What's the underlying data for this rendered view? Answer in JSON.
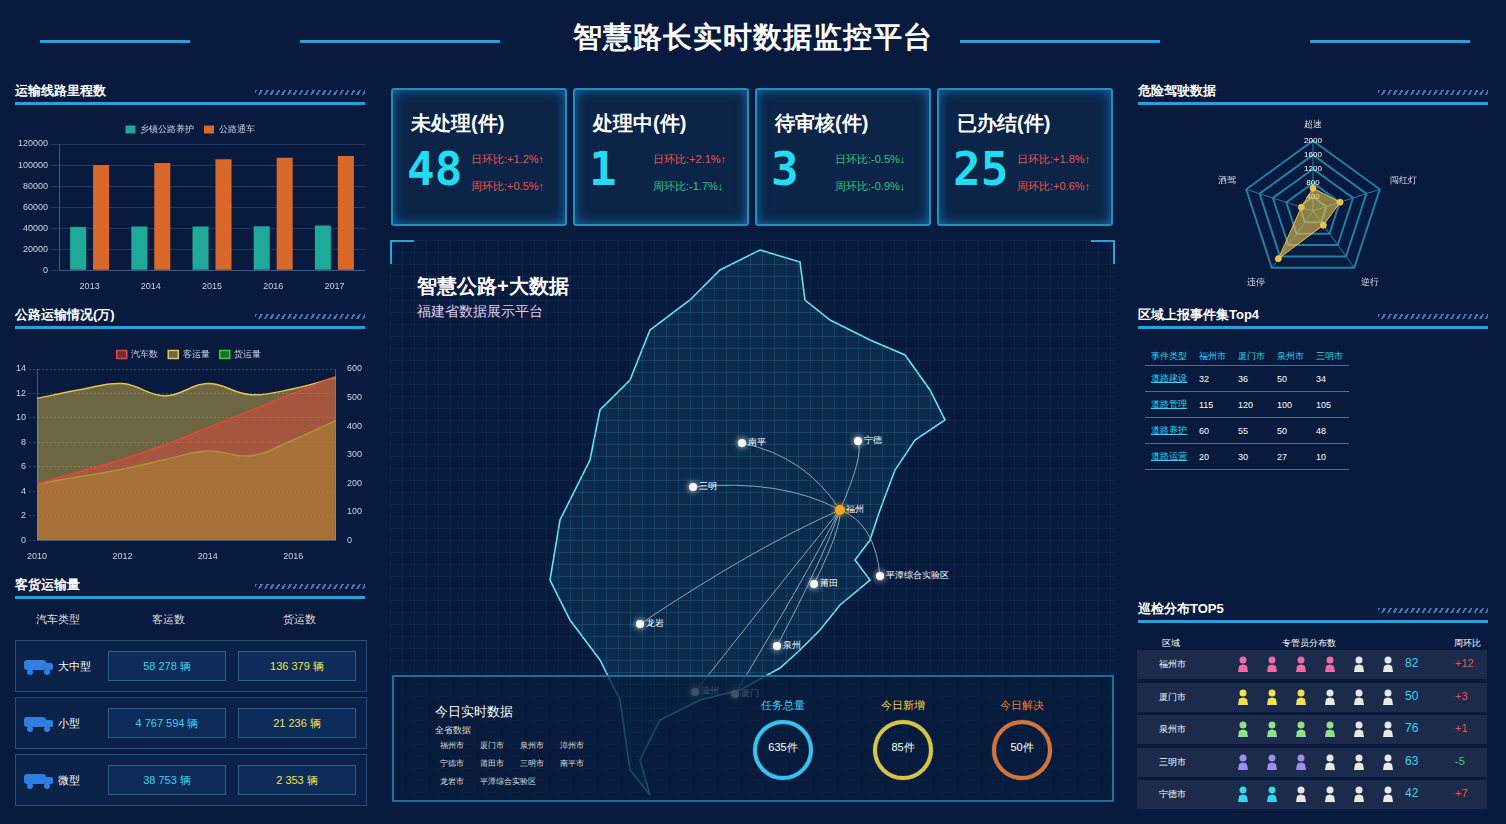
{
  "header": {
    "title": "智慧路长实时数据监控平台"
  },
  "chart_data": [
    {
      "type": "bar",
      "title": "运输线路里程数",
      "categories": [
        "2013",
        "2014",
        "2015",
        "2016",
        "2017"
      ],
      "series": [
        {
          "name": "乡镇公路养护",
          "color": "#1fa99b",
          "values": [
            41000,
            41500,
            41500,
            41800,
            42500
          ]
        },
        {
          "name": "公路通车",
          "color": "#d8692b",
          "values": [
            100000,
            102000,
            105500,
            107000,
            108500
          ]
        }
      ],
      "ylim": [
        0,
        120000
      ],
      "yticks": [
        0,
        20000,
        40000,
        60000,
        80000,
        100000,
        120000
      ],
      "grid": true,
      "legend": "top"
    },
    {
      "type": "line",
      "title": "公路运输情况(万)",
      "categories": [
        "2010",
        null,
        "2012",
        null,
        "2014",
        null,
        "2016",
        null
      ],
      "series": [
        {
          "name": "汽车数",
          "color": "#e8453c",
          "values": [
            4.6,
            5.6,
            6.6,
            7.8,
            9.2,
            10.6,
            12.0,
            13.4
          ]
        },
        {
          "name": "客运量",
          "color": "#e9c34a",
          "axis": "y2",
          "values": [
            497,
            527,
            549,
            506,
            549,
            510,
            531,
            570
          ]
        },
        {
          "name": "货运量",
          "color": "#22e01a",
          "values": [
            4.6,
            5.2,
            5.8,
            6.6,
            7.3,
            6.9,
            8.2,
            9.8
          ]
        }
      ],
      "ylim": [
        0,
        14
      ],
      "yticks": [
        0,
        2,
        4,
        6,
        8,
        10,
        12,
        14
      ],
      "y2lim": [
        0,
        600
      ],
      "y2ticks": [
        0,
        100,
        200,
        300,
        400,
        500,
        600
      ],
      "grid": true,
      "legend": "top"
    },
    {
      "type": "radar",
      "title": "危险驾驶数据",
      "categories": [
        "超速",
        "闯红灯",
        "逆行",
        "违停",
        "酒驾"
      ],
      "values": [
        650,
        810,
        500,
        1680,
        350
      ],
      "color": "#e9c34a",
      "ylim": [
        0,
        2000
      ],
      "yticks": [
        0,
        400,
        800,
        1200,
        1600,
        2000
      ],
      "grid": true
    }
  ],
  "stats": [
    {
      "title": "未处理(件)",
      "value": 48,
      "day": "日环比:+1.2%↑",
      "week": "周环比:+0.5%↑"
    },
    {
      "title": "处理中(件)",
      "value": 1,
      "day": "日环比:+2.1%↑",
      "week": "周环比:-1.7%↓"
    },
    {
      "title": "待审核(件)",
      "value": 3,
      "day": "日环比:-0.5%↓",
      "week": "周环比:-0.9%↓"
    },
    {
      "title": "已办结(件)",
      "value": 25,
      "day": "日环比:+1.8%↑",
      "week": "周环比:+0.6%↑"
    }
  ],
  "map": {
    "title": "智慧公路+大数据",
    "subtitle": "福建省数据展示平台",
    "cities": [
      "南平",
      "宁德",
      "三明",
      "福州",
      "莆田",
      "平潭综合实验区",
      "龙岩",
      "泉州",
      "漳州",
      "厦门"
    ],
    "hub": "福州"
  },
  "realtime": {
    "title": "今日实时数据",
    "subtitle": "全省数据",
    "cities": [
      "福州市",
      "厦门市",
      "泉州市",
      "漳州市",
      "宁德市",
      "莆田市",
      "三明市",
      "南平市",
      "龙岩市",
      "平潭综合实验区"
    ],
    "gauges": [
      {
        "label": "任务总量",
        "text": "635件",
        "color": "#3ad0ff"
      },
      {
        "label": "今日新增",
        "text": "85件",
        "color": "#f2d43a"
      },
      {
        "label": "今日解决",
        "text": "50件",
        "color": "#f07a2a"
      }
    ]
  },
  "freight": {
    "title": "客货运输量",
    "header": [
      "汽车类型",
      "客运数",
      "货运数"
    ],
    "rows": [
      [
        "大中型",
        "58 278 辆",
        "136 379 辆"
      ],
      [
        "小型",
        "4 767 594 辆",
        "21 236 辆"
      ],
      [
        "微型",
        "38 753 辆",
        "2 353 辆"
      ]
    ]
  },
  "events": {
    "title": "区域上报事件集Top4",
    "header": [
      "事件类型",
      "福州市",
      "厦门市",
      "泉州市",
      "三明市"
    ],
    "rows": [
      [
        "道路建设",
        32,
        36,
        50,
        34
      ],
      [
        "道路管理",
        115,
        120,
        100,
        105
      ],
      [
        "道路养护",
        60,
        55,
        50,
        48
      ],
      [
        "道路运营",
        20,
        30,
        27,
        10
      ]
    ]
  },
  "patrol": {
    "title": "巡检分布TOP5",
    "header": [
      "区域",
      "专管员分布数",
      "周环比"
    ],
    "icon_slots": 6,
    "rows": [
      {
        "region": "福州市",
        "icons": 4,
        "color": "#f06aa8",
        "count": 82,
        "change": "+12"
      },
      {
        "region": "厦门市",
        "icons": 3,
        "color": "#f3e04a",
        "count": 50,
        "change": "+3"
      },
      {
        "region": "泉州市",
        "icons": 4,
        "color": "#8ee28a",
        "count": 76,
        "change": "+1"
      },
      {
        "region": "三明市",
        "icons": 3,
        "color": "#9a8ff0",
        "count": 63,
        "change": "-5"
      },
      {
        "region": "宁德市",
        "icons": 2,
        "color": "#35d6e8",
        "count": 42,
        "change": "+7"
      }
    ]
  }
}
